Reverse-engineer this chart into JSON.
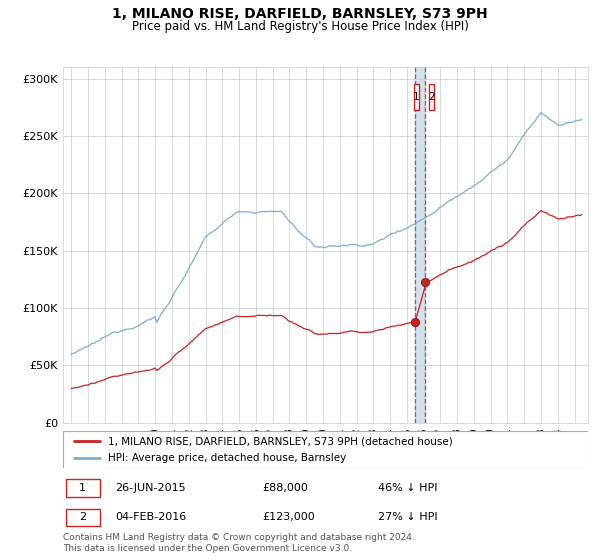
{
  "title": "1, MILANO RISE, DARFIELD, BARNSLEY, S73 9PH",
  "subtitle": "Price paid vs. HM Land Registry's House Price Index (HPI)",
  "legend_line1": "1, MILANO RISE, DARFIELD, BARNSLEY, S73 9PH (detached house)",
  "legend_line2": "HPI: Average price, detached house, Barnsley",
  "transaction1_date": "26-JUN-2015",
  "transaction1_price": 88000,
  "transaction1_pct": "46% ↓ HPI",
  "transaction2_date": "04-FEB-2016",
  "transaction2_price": 123000,
  "transaction2_pct": "27% ↓ HPI",
  "footer": "Contains HM Land Registry data © Crown copyright and database right 2024.\nThis data is licensed under the Open Government Licence v3.0.",
  "hpi_color": "#7ab0d4",
  "price_color": "#cc2222",
  "dashed_line_color": "#cc4444",
  "band_color": "#d0e4f0",
  "ylim": [
    0,
    310000
  ],
  "yticks": [
    0,
    50000,
    100000,
    150000,
    200000,
    250000,
    300000
  ],
  "xmin": 1994.5,
  "xmax": 2025.8,
  "t1": 2015.486,
  "t2": 2016.093,
  "p1": 88000,
  "p2": 123000
}
